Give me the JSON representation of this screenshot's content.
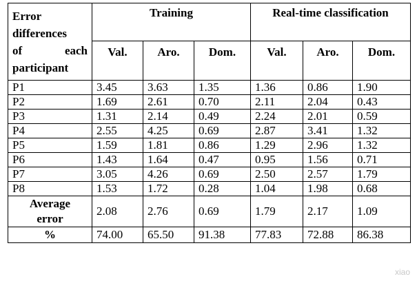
{
  "table": {
    "corner_lines": [
      "Error",
      "differences",
      "of each",
      "participant"
    ],
    "group_headers": [
      "Training",
      "Real-time classification"
    ],
    "sub_headers": [
      "Val.",
      "Aro.",
      "Dom.",
      "Val.",
      "Aro.",
      "Dom."
    ],
    "rows": [
      {
        "label": "P1",
        "values": [
          "3.45",
          "3.63",
          "1.35",
          "1.36",
          "0.86",
          "1.90"
        ]
      },
      {
        "label": "P2",
        "values": [
          "1.69",
          "2.61",
          "0.70",
          "2.11",
          "2.04",
          "0.43"
        ]
      },
      {
        "label": "P3",
        "values": [
          "1.31",
          "2.14",
          "0.49",
          "2.24",
          "2.01",
          "0.59"
        ]
      },
      {
        "label": "P4",
        "values": [
          "2.55",
          "4.25",
          "0.69",
          "2.87",
          "3.41",
          "1.32"
        ]
      },
      {
        "label": "P5",
        "values": [
          "1.59",
          "1.81",
          "0.86",
          "1.29",
          "2.96",
          "1.32"
        ]
      },
      {
        "label": "P6",
        "values": [
          "1.43",
          "1.64",
          "0.47",
          "0.95",
          "1.56",
          "0.71"
        ]
      },
      {
        "label": "P7",
        "values": [
          "3.05",
          "4.26",
          "0.69",
          "2.50",
          "2.57",
          "1.79"
        ]
      },
      {
        "label": "P8",
        "values": [
          "1.53",
          "1.72",
          "0.28",
          "1.04",
          "1.98",
          "0.68"
        ]
      }
    ],
    "average": {
      "label_lines": [
        "Average",
        "error"
      ],
      "values": [
        "2.08",
        "2.76",
        "0.69",
        "1.79",
        "2.17",
        "1.09"
      ]
    },
    "percent": {
      "label": "%",
      "values": [
        "74.00",
        "65.50",
        "91.38",
        "77.83",
        "72.88",
        "86.38"
      ]
    }
  },
  "watermark": "xiao"
}
